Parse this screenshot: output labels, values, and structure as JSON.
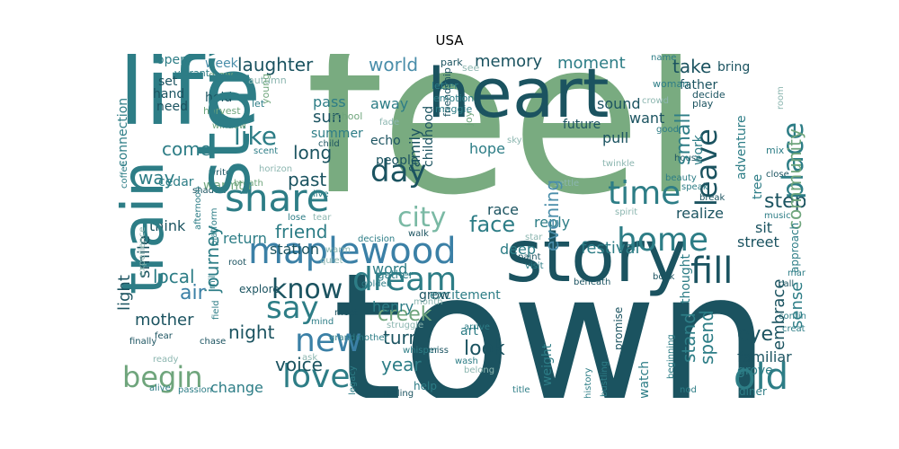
{
  "title": "USA",
  "palette": {
    "dark": "#1b4f5c",
    "teal": "#2d7d86",
    "blue": "#4a8eaa",
    "green": "#6fa57c",
    "light": "#8cb6b0"
  },
  "words": [
    {
      "text": "feel",
      "weight": 1.0
    },
    {
      "text": "town",
      "weight": 0.95
    },
    {
      "text": "life",
      "weight": 0.55
    },
    {
      "text": "heart",
      "weight": 0.5
    },
    {
      "text": "story",
      "weight": 0.48
    },
    {
      "text": "train",
      "weight": 0.45
    },
    {
      "text": "find",
      "weight": 0.45
    },
    {
      "text": "share",
      "weight": 0.3
    },
    {
      "text": "maplewood",
      "weight": 0.28
    },
    {
      "text": "day",
      "weight": 0.25
    },
    {
      "text": "city",
      "weight": 0.22
    },
    {
      "text": "time",
      "weight": 0.25
    },
    {
      "text": "home",
      "weight": 0.25
    },
    {
      "text": "fill",
      "weight": 0.25
    },
    {
      "text": "place",
      "weight": 0.25
    },
    {
      "text": "leave",
      "weight": 0.22
    },
    {
      "text": "dream",
      "weight": 0.24
    },
    {
      "text": "love",
      "weight": 0.24
    },
    {
      "text": "new",
      "weight": 0.24
    },
    {
      "text": "say",
      "weight": 0.22
    },
    {
      "text": "know",
      "weight": 0.21
    },
    {
      "text": "begin",
      "weight": 0.2
    },
    {
      "text": "old",
      "weight": 0.22
    },
    {
      "text": "like",
      "weight": 0.2
    },
    {
      "text": "laughter",
      "weight": 0.14
    },
    {
      "text": "world",
      "weight": 0.13
    },
    {
      "text": "memory",
      "weight": 0.13
    },
    {
      "text": "moment",
      "weight": 0.12
    },
    {
      "text": "take",
      "weight": 0.12
    },
    {
      "text": "community",
      "weight": 0.12
    },
    {
      "text": "small",
      "weight": 0.13
    },
    {
      "text": "come",
      "weight": 0.13
    },
    {
      "text": "long",
      "weight": 0.13
    },
    {
      "text": "past",
      "weight": 0.13
    },
    {
      "text": "way",
      "weight": 0.12
    },
    {
      "text": "friend",
      "weight": 0.13
    },
    {
      "text": "journey",
      "weight": 0.12
    },
    {
      "text": "face",
      "weight": 0.14
    },
    {
      "text": "evening",
      "weight": 0.13
    },
    {
      "text": "step",
      "weight": 0.13
    },
    {
      "text": "festival",
      "weight": 0.13
    },
    {
      "text": "creek",
      "weight": 0.14
    },
    {
      "text": "night",
      "weight": 0.13
    },
    {
      "text": "voice",
      "weight": 0.13
    },
    {
      "text": "year",
      "weight": 0.12
    },
    {
      "text": "look",
      "weight": 0.13
    },
    {
      "text": "stand",
      "weight": 0.13
    },
    {
      "text": "spend",
      "weight": 0.12
    },
    {
      "text": "eye",
      "weight": 0.13
    },
    {
      "text": "embrace",
      "weight": 0.12
    },
    {
      "text": "local",
      "weight": 0.12
    },
    {
      "text": "air",
      "weight": 0.13
    },
    {
      "text": "light",
      "weight": 0.12
    },
    {
      "text": "smile",
      "weight": 0.12
    },
    {
      "text": "mother",
      "weight": 0.12
    },
    {
      "text": "sun",
      "weight": 0.12
    },
    {
      "text": "family",
      "weight": 0.11
    },
    {
      "text": "sense",
      "weight": 0.12
    },
    {
      "text": "turn",
      "weight": 0.12
    },
    {
      "text": "change",
      "weight": 0.1
    },
    {
      "text": "realize",
      "weight": 0.1
    },
    {
      "text": "sit",
      "weight": 0.1
    },
    {
      "text": "pass",
      "weight": 0.1
    },
    {
      "text": "away",
      "weight": 0.1
    },
    {
      "text": "hope",
      "weight": 0.1
    },
    {
      "text": "sound",
      "weight": 0.1
    },
    {
      "text": "pull",
      "weight": 0.1
    },
    {
      "text": "want",
      "weight": 0.1
    },
    {
      "text": "reply",
      "weight": 0.1
    },
    {
      "text": "station",
      "weight": 0.1
    },
    {
      "text": "return",
      "weight": 0.1
    },
    {
      "text": "think",
      "weight": 0.1
    },
    {
      "text": "street",
      "weight": 0.1
    },
    {
      "text": "word",
      "weight": 0.1
    },
    {
      "text": "deep",
      "weight": 0.1
    },
    {
      "text": "race",
      "weight": 0.1
    },
    {
      "text": "henry",
      "weight": 0.1
    },
    {
      "text": "excitement",
      "weight": 0.09
    },
    {
      "text": "familiar",
      "weight": 0.1
    },
    {
      "text": "watch",
      "weight": 0.09
    },
    {
      "text": "weight",
      "weight": 0.09
    },
    {
      "text": "thought",
      "weight": 0.09
    },
    {
      "text": "tree",
      "weight": 0.09
    },
    {
      "text": "work",
      "weight": 0.09
    },
    {
      "text": "father",
      "weight": 0.09
    },
    {
      "text": "future",
      "weight": 0.09
    },
    {
      "text": "summer",
      "weight": 0.09
    },
    {
      "text": "echo",
      "weight": 0.09
    },
    {
      "text": "people",
      "weight": 0.09
    },
    {
      "text": "childhood",
      "weight": 0.08
    },
    {
      "text": "connection",
      "weight": 0.09
    },
    {
      "text": "cedar",
      "weight": 0.09
    },
    {
      "text": "warmth",
      "weight": 0.09
    },
    {
      "text": "hand",
      "weight": 0.09
    },
    {
      "text": "need",
      "weight": 0.09
    },
    {
      "text": "hold",
      "weight": 0.09
    },
    {
      "text": "set",
      "weight": 0.09
    },
    {
      "text": "week",
      "weight": 0.08
    },
    {
      "text": "open",
      "weight": 0.08
    },
    {
      "text": "bring",
      "weight": 0.08
    },
    {
      "text": "adventure",
      "weight": 0.08
    },
    {
      "text": "approach",
      "weight": 0.07
    },
    {
      "text": "grove",
      "weight": 0.08
    },
    {
      "text": "diner",
      "weight": 0.08
    },
    {
      "text": "art",
      "weight": 0.08
    },
    {
      "text": "grow",
      "weight": 0.08
    },
    {
      "text": "promise",
      "weight": 0.07
    },
    {
      "text": "help",
      "weight": 0.07
    },
    {
      "text": "gather",
      "weight": 0.06
    },
    {
      "text": "explore",
      "weight": 0.07
    },
    {
      "text": "vibrant",
      "weight": 0.06
    },
    {
      "text": "draw",
      "weight": 0.06
    },
    {
      "text": "autumn",
      "weight": 0.06
    },
    {
      "text": "young",
      "weight": 0.06
    },
    {
      "text": "let",
      "weight": 0.06
    },
    {
      "text": "harvest",
      "weight": 0.06
    },
    {
      "text": "school",
      "weight": 0.06
    },
    {
      "text": "friendship",
      "weight": 0.06
    },
    {
      "text": "park",
      "weight": 0.06
    },
    {
      "text": "see",
      "weight": 0.06
    },
    {
      "text": "joy",
      "weight": 0.06
    },
    {
      "text": "maggie",
      "weight": 0.06
    },
    {
      "text": "emotion",
      "weight": 0.06
    },
    {
      "text": "letter",
      "weight": 0.06
    },
    {
      "text": "woman",
      "weight": 0.05
    },
    {
      "text": "name",
      "weight": 0.05
    },
    {
      "text": "crowd",
      "weight": 0.05
    },
    {
      "text": "decide",
      "weight": 0.05
    },
    {
      "text": "play",
      "weight": 0.05
    },
    {
      "text": "room",
      "weight": 0.05
    },
    {
      "text": "good",
      "weight": 0.05
    },
    {
      "text": "mix",
      "weight": 0.05
    },
    {
      "text": "twinkle",
      "weight": 0.05
    },
    {
      "text": "house",
      "weight": 0.05
    },
    {
      "text": "beauty",
      "weight": 0.05
    },
    {
      "text": "speak",
      "weight": 0.05
    },
    {
      "text": "close",
      "weight": 0.05
    },
    {
      "text": "break",
      "weight": 0.05
    },
    {
      "text": "music",
      "weight": 0.05
    },
    {
      "text": "spirit",
      "weight": 0.05
    },
    {
      "text": "window",
      "weight": 0.05
    },
    {
      "text": "coffee",
      "weight": 0.05
    },
    {
      "text": "scent",
      "weight": 0.05
    },
    {
      "text": "child",
      "weight": 0.05
    },
    {
      "text": "fade",
      "weight": 0.05
    },
    {
      "text": "sky",
      "weight": 0.05
    },
    {
      "text": "write",
      "weight": 0.05
    },
    {
      "text": "horizon",
      "weight": 0.05
    },
    {
      "text": "breath",
      "weight": 0.05
    },
    {
      "text": "shadow",
      "weight": 0.05
    },
    {
      "text": "afternoon",
      "weight": 0.05
    },
    {
      "text": "platform",
      "weight": 0.05
    },
    {
      "text": "settle",
      "weight": 0.05
    },
    {
      "text": "live",
      "weight": 0.05
    },
    {
      "text": "lose",
      "weight": 0.05
    },
    {
      "text": "tear",
      "weight": 0.05
    },
    {
      "text": "experience",
      "weight": 0.05
    },
    {
      "text": "decision",
      "weight": 0.05
    },
    {
      "text": "walk",
      "weight": 0.05
    },
    {
      "text": "star",
      "weight": 0.05
    },
    {
      "text": "paint",
      "weight": 0.05
    },
    {
      "text": "root",
      "weight": 0.05
    },
    {
      "text": "quiet",
      "weight": 0.05
    },
    {
      "text": "warm",
      "weight": 0.05
    },
    {
      "text": "golden",
      "weight": 0.05
    },
    {
      "text": "mill",
      "weight": 0.05
    },
    {
      "text": "field",
      "weight": 0.05
    },
    {
      "text": "month",
      "weight": 0.05
    },
    {
      "text": "meet",
      "weight": 0.05
    },
    {
      "text": "mind",
      "weight": 0.05
    },
    {
      "text": "struggle",
      "weight": 0.05
    },
    {
      "text": "arrive",
      "weight": 0.05
    },
    {
      "text": "visit",
      "weight": 0.05
    },
    {
      "text": "beneath",
      "weight": 0.05
    },
    {
      "text": "book",
      "weight": 0.05
    },
    {
      "text": "man",
      "weight": 0.05
    },
    {
      "text": "call",
      "weight": 0.05
    },
    {
      "text": "continue",
      "weight": 0.05
    },
    {
      "text": "create",
      "weight": 0.05
    },
    {
      "text": "finally",
      "weight": 0.05
    },
    {
      "text": "fear",
      "weight": 0.05
    },
    {
      "text": "chase",
      "weight": 0.05
    },
    {
      "text": "ready",
      "weight": 0.05
    },
    {
      "text": "grandmother",
      "weight": 0.05
    },
    {
      "text": "ask",
      "weight": 0.05
    },
    {
      "text": "whisper",
      "weight": 0.05
    },
    {
      "text": "miss",
      "weight": 0.05
    },
    {
      "text": "wash",
      "weight": 0.05
    },
    {
      "text": "belong",
      "weight": 0.05
    },
    {
      "text": "alive",
      "weight": 0.05
    },
    {
      "text": "passion",
      "weight": 0.05
    },
    {
      "text": "legacy",
      "weight": 0.05
    },
    {
      "text": "feeling",
      "weight": 0.05
    },
    {
      "text": "title",
      "weight": 0.05
    },
    {
      "text": "history",
      "weight": 0.05
    },
    {
      "text": "bustling",
      "weight": 0.05
    },
    {
      "text": "nod",
      "weight": 0.05
    },
    {
      "text": "beginning",
      "weight": 0.05
    },
    {
      "text": "cast",
      "weight": 0.05
    }
  ]
}
